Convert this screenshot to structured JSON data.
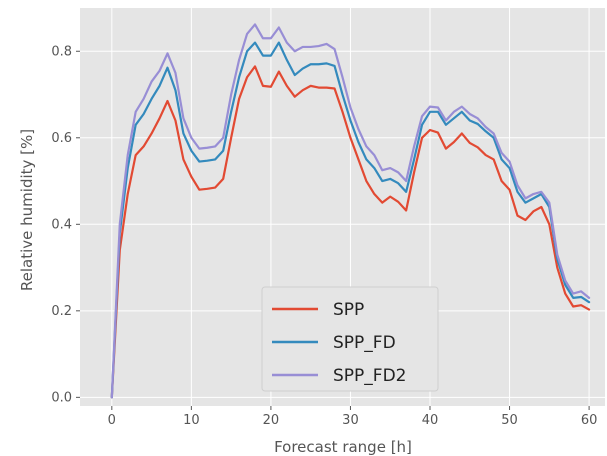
{
  "chart_data": {
    "type": "line",
    "xlabel": "Forecast range [h]",
    "ylabel": "Relative humidity [%]",
    "xlim": [
      -4,
      62
    ],
    "ylim": [
      -0.02,
      0.9
    ],
    "xticks": [
      0,
      10,
      20,
      30,
      40,
      50,
      60
    ],
    "yticks": [
      0.0,
      0.2,
      0.4,
      0.6,
      0.8
    ],
    "grid": true,
    "legend_position": "lower-center",
    "x": [
      0,
      1,
      2,
      3,
      4,
      5,
      6,
      7,
      8,
      9,
      10,
      11,
      12,
      13,
      14,
      15,
      16,
      17,
      18,
      19,
      20,
      21,
      22,
      23,
      24,
      25,
      26,
      27,
      28,
      29,
      30,
      31,
      32,
      33,
      34,
      35,
      36,
      37,
      38,
      39,
      40,
      41,
      42,
      43,
      44,
      45,
      46,
      47,
      48,
      49,
      50,
      51,
      52,
      53,
      54,
      55,
      56,
      57,
      58,
      59,
      60
    ],
    "series": [
      {
        "name": "SPP",
        "color": "#e24a33",
        "values": [
          0.0,
          0.34,
          0.47,
          0.56,
          0.58,
          0.61,
          0.645,
          0.685,
          0.64,
          0.55,
          0.51,
          0.48,
          0.482,
          0.485,
          0.505,
          0.6,
          0.69,
          0.74,
          0.765,
          0.72,
          0.718,
          0.753,
          0.72,
          0.695,
          0.71,
          0.72,
          0.716,
          0.716,
          0.714,
          0.66,
          0.6,
          0.55,
          0.5,
          0.47,
          0.45,
          0.464,
          0.452,
          0.432,
          0.52,
          0.6,
          0.618,
          0.612,
          0.575,
          0.59,
          0.61,
          0.588,
          0.578,
          0.56,
          0.55,
          0.5,
          0.48,
          0.42,
          0.41,
          0.43,
          0.44,
          0.4,
          0.3,
          0.24,
          0.21,
          0.213,
          0.203
        ]
      },
      {
        "name": "SPP_FD",
        "color": "#348abd",
        "values": [
          0.0,
          0.38,
          0.53,
          0.63,
          0.655,
          0.69,
          0.72,
          0.762,
          0.71,
          0.61,
          0.57,
          0.545,
          0.547,
          0.55,
          0.57,
          0.66,
          0.74,
          0.8,
          0.82,
          0.79,
          0.79,
          0.82,
          0.78,
          0.745,
          0.76,
          0.77,
          0.77,
          0.772,
          0.766,
          0.7,
          0.64,
          0.59,
          0.55,
          0.53,
          0.5,
          0.505,
          0.495,
          0.475,
          0.55,
          0.63,
          0.66,
          0.66,
          0.63,
          0.645,
          0.66,
          0.64,
          0.632,
          0.615,
          0.6,
          0.55,
          0.53,
          0.475,
          0.45,
          0.46,
          0.47,
          0.44,
          0.32,
          0.26,
          0.23,
          0.232,
          0.22
        ]
      },
      {
        "name": "SPP_FD2",
        "color": "#988ed5",
        "values": [
          0.0,
          0.4,
          0.56,
          0.66,
          0.69,
          0.73,
          0.755,
          0.795,
          0.75,
          0.645,
          0.6,
          0.575,
          0.577,
          0.58,
          0.6,
          0.7,
          0.78,
          0.84,
          0.862,
          0.83,
          0.83,
          0.855,
          0.82,
          0.8,
          0.81,
          0.81,
          0.812,
          0.817,
          0.805,
          0.74,
          0.67,
          0.62,
          0.58,
          0.56,
          0.525,
          0.53,
          0.52,
          0.5,
          0.58,
          0.65,
          0.672,
          0.67,
          0.64,
          0.66,
          0.672,
          0.655,
          0.645,
          0.625,
          0.61,
          0.565,
          0.545,
          0.49,
          0.46,
          0.47,
          0.475,
          0.45,
          0.33,
          0.27,
          0.24,
          0.245,
          0.23
        ]
      }
    ]
  }
}
